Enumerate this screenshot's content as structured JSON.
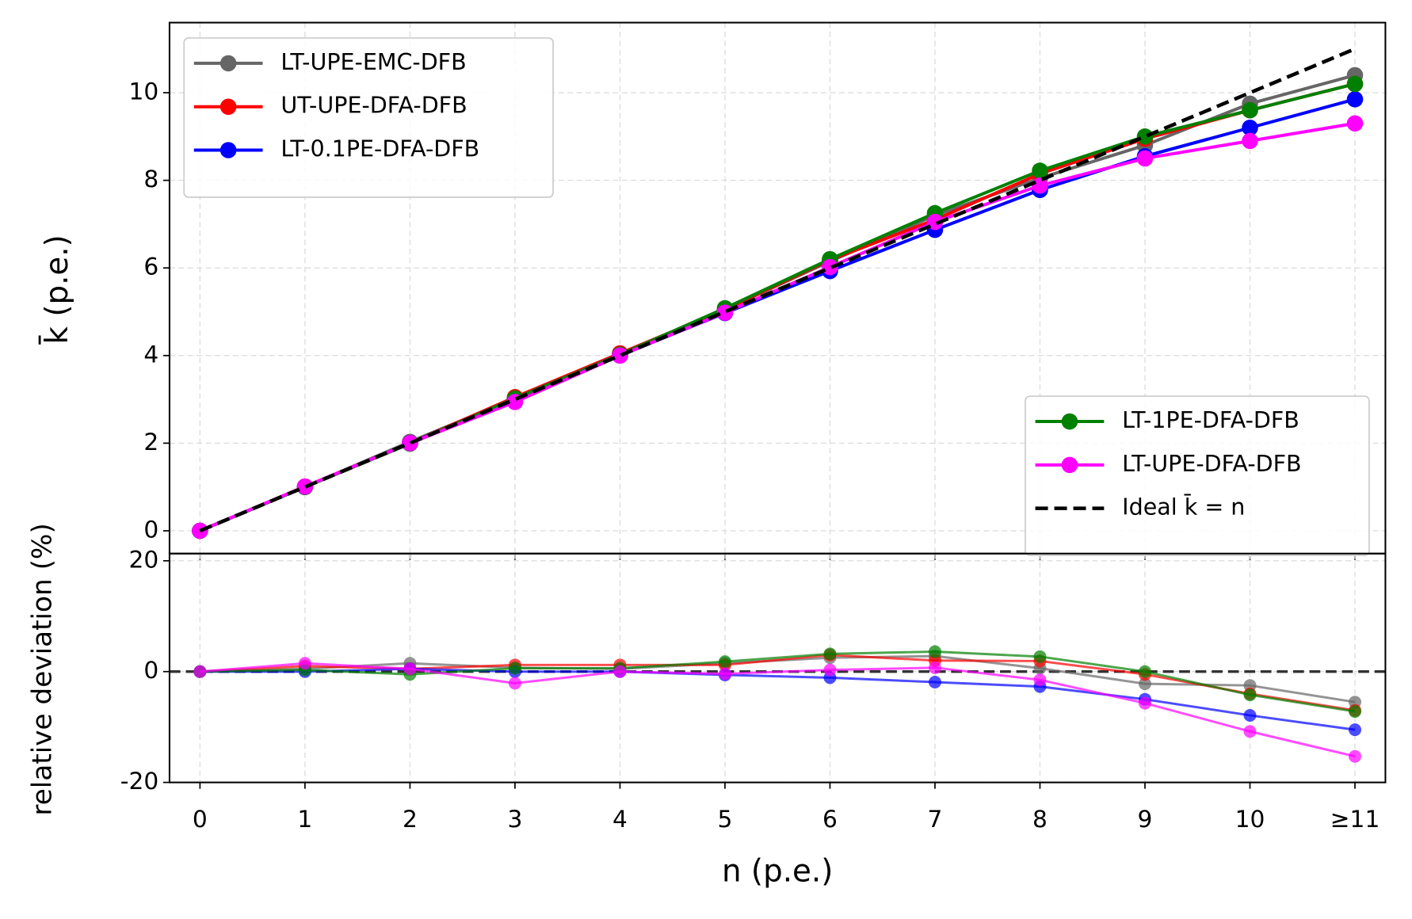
{
  "chart_data": [
    {
      "type": "line",
      "ylabel": "k̄ (p.e.)",
      "categories": [
        "0",
        "1",
        "2",
        "3",
        "4",
        "5",
        "6",
        "7",
        "8",
        "9",
        "10",
        "≥11"
      ],
      "ylim": [
        -0.52,
        11.6
      ],
      "yticks": [
        0,
        2,
        4,
        6,
        8,
        10
      ],
      "grid": true,
      "series": [
        {
          "name": "LT-UPE-EMC-DFB",
          "color": "#666666",
          "legend": "upper left",
          "values": [
            0,
            1.0,
            2.03,
            3.02,
            4.02,
            5.05,
            6.15,
            7.2,
            8.05,
            8.8,
            9.75,
            10.4
          ]
        },
        {
          "name": "UT-UPE-DFA-DFB",
          "color": "#ff0000",
          "legend": "upper left",
          "values": [
            0,
            1.01,
            2.0,
            3.05,
            4.05,
            5.05,
            6.18,
            7.1,
            8.15,
            8.95,
            9.6,
            10.2
          ]
        },
        {
          "name": "LT-0.1PE-DFA-DFB",
          "color": "#0000ff",
          "legend": "upper left",
          "values": [
            0,
            1.0,
            2.0,
            3.0,
            4.0,
            4.97,
            5.93,
            6.87,
            7.78,
            8.55,
            9.2,
            9.85
          ]
        },
        {
          "name": "LT-1PE-DFA-DFB",
          "color": "#008000",
          "legend": "lower right",
          "values": [
            0,
            1.0,
            1.99,
            3.02,
            4.02,
            5.08,
            6.2,
            7.25,
            8.22,
            9.0,
            9.6,
            10.2
          ]
        },
        {
          "name": "LT-UPE-DFA-DFB",
          "color": "#ff00ff",
          "legend": "lower right",
          "values": [
            0,
            1.01,
            2.0,
            2.94,
            4.0,
            4.98,
            6.02,
            7.05,
            7.88,
            8.5,
            8.9,
            9.3
          ]
        },
        {
          "name": "Ideal k̄ = n",
          "color": "#000000",
          "legend": "lower right",
          "dashed": true,
          "values": [
            0,
            1,
            2,
            3,
            4,
            5,
            6,
            7,
            8,
            9,
            10,
            11
          ]
        }
      ]
    },
    {
      "type": "line",
      "ylabel": "relative deviation (%)",
      "xlabel": "n (p.e.)",
      "categories": [
        "0",
        "1",
        "2",
        "3",
        "4",
        "5",
        "6",
        "7",
        "8",
        "9",
        "10",
        "≥11"
      ],
      "ylim": [
        -20,
        21.3
      ],
      "yticks": [
        -20,
        0,
        20
      ],
      "grid": true,
      "hline": 0,
      "series": [
        {
          "color": "#666666",
          "values": [
            0,
            0.5,
            1.5,
            0.7,
            0.5,
            1.5,
            2.5,
            2.8,
            0.6,
            -2.2,
            -2.5,
            -5.5
          ]
        },
        {
          "color": "#ff0000",
          "values": [
            0,
            1.0,
            0.5,
            1.2,
            1.2,
            1.2,
            3.0,
            2.0,
            1.9,
            -0.5,
            -4.0,
            -7.0
          ]
        },
        {
          "color": "#0000ff",
          "values": [
            0,
            0,
            0.5,
            0,
            0,
            -0.6,
            -1.1,
            -1.9,
            -2.7,
            -5.0,
            -7.9,
            -10.5
          ]
        },
        {
          "color": "#008000",
          "values": [
            0,
            0.3,
            -0.5,
            0.6,
            0.6,
            1.8,
            3.2,
            3.6,
            2.7,
            0,
            -4.2,
            -7.2
          ]
        },
        {
          "color": "#ff00ff",
          "values": [
            0,
            1.5,
            0.5,
            -2.1,
            0,
            -0.4,
            0.3,
            0.7,
            -1.5,
            -5.7,
            -10.8,
            -15.3
          ]
        }
      ]
    }
  ]
}
